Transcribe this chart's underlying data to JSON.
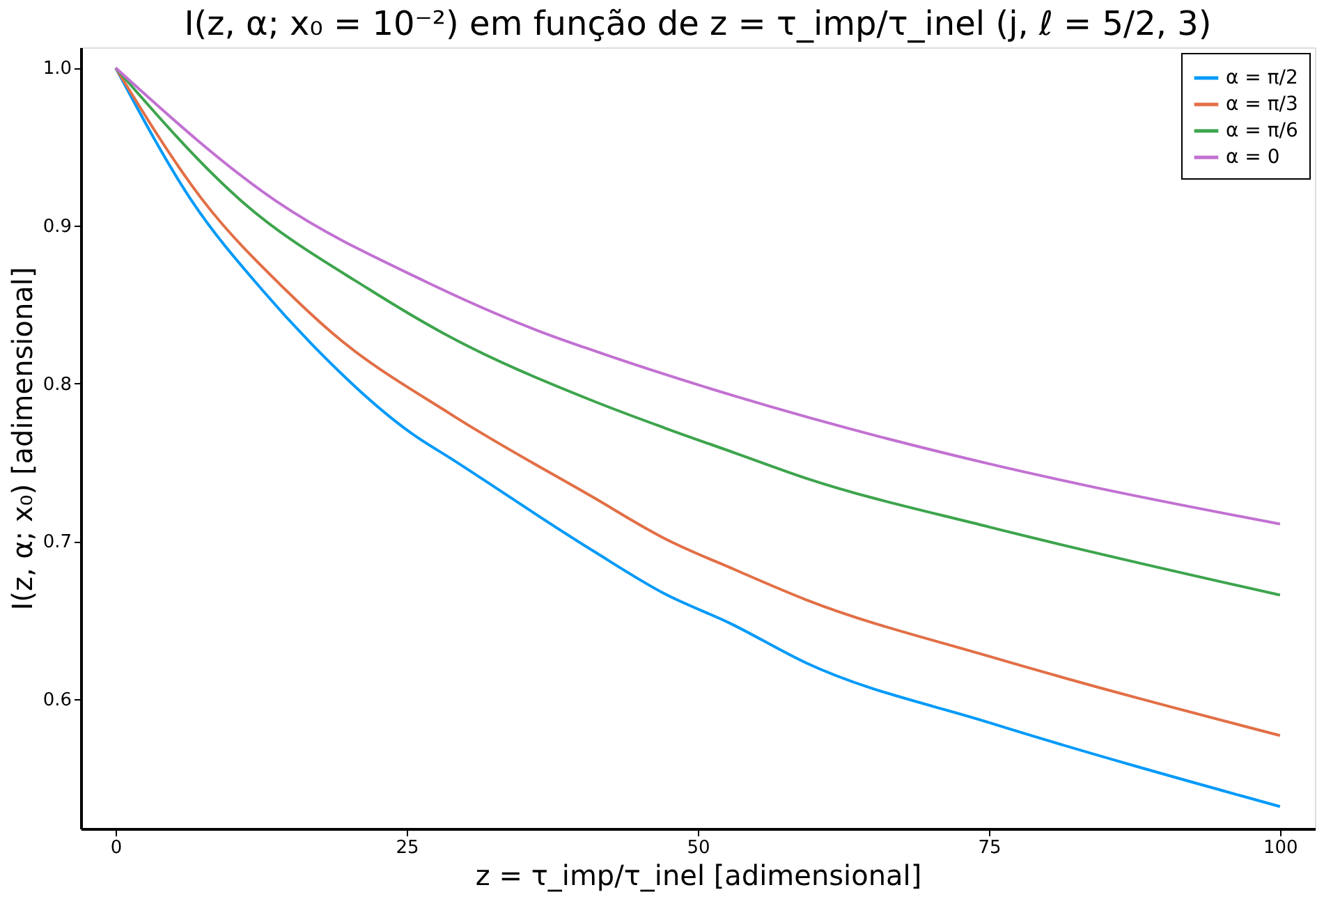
{
  "chart_data": {
    "type": "line",
    "title": "I(z, α; x₀ = 10⁻²) em função de z = τ_imp/τ_inel (j, ℓ = 5/2, 3)",
    "xlabel": "z = τ_imp/τ_inel [adimensional]",
    "ylabel": "I(z, α; x₀) [adimensional]",
    "xlim": [
      -3,
      103
    ],
    "ylim": [
      0.518,
      1.013
    ],
    "xticks": [
      0,
      25,
      50,
      75,
      100
    ],
    "yticks": [
      0.6,
      0.7,
      0.8,
      0.9,
      {
        "value": 1,
        "label": "1.0"
      }
    ],
    "grid": false,
    "legend": "top right",
    "marker": "none",
    "line_style": "solid",
    "series": [
      {
        "name": "α = π/2",
        "color": "#009af9",
        "x": [
          0,
          6.6,
          12.5,
          16.7,
          25.5,
          28.9,
          41,
          47.1,
          52.8,
          59.3,
          75.1,
          100
        ],
        "values": [
          1.0,
          0.915,
          0.86,
          0.826,
          0.768,
          0.752,
          0.694,
          0.667,
          0.648,
          0.623,
          0.585,
          0.532
        ]
      },
      {
        "name": "α = π/3",
        "color": "#e26f46",
        "x": [
          0,
          7.6,
          14.5,
          18.6,
          28.9,
          41,
          47.1,
          53.2,
          59.3,
          75.1,
          100
        ],
        "values": [
          1.0,
          0.915,
          0.86,
          0.832,
          0.78,
          0.728,
          0.702,
          0.682,
          0.663,
          0.627,
          0.577
        ]
      },
      {
        "name": "α = π/6",
        "color": "#3da44d",
        "x": [
          0,
          10.9,
          21.7,
          28.1,
          41,
          47.1,
          53.2,
          59.3,
          75.1,
          100
        ],
        "values": [
          1.0,
          0.915,
          0.86,
          0.832,
          0.789,
          0.772,
          0.756,
          0.74,
          0.709,
          0.666
        ]
      },
      {
        "name": "α = 0",
        "color": "#c271d2",
        "x": [
          0,
          13.9,
          26.5,
          36.8,
          41,
          47.1,
          53.2,
          75.1,
          83.6,
          100
        ],
        "values": [
          1.0,
          0.915,
          0.865,
          0.832,
          0.821,
          0.806,
          0.792,
          0.749,
          0.735,
          0.711
        ]
      }
    ]
  }
}
